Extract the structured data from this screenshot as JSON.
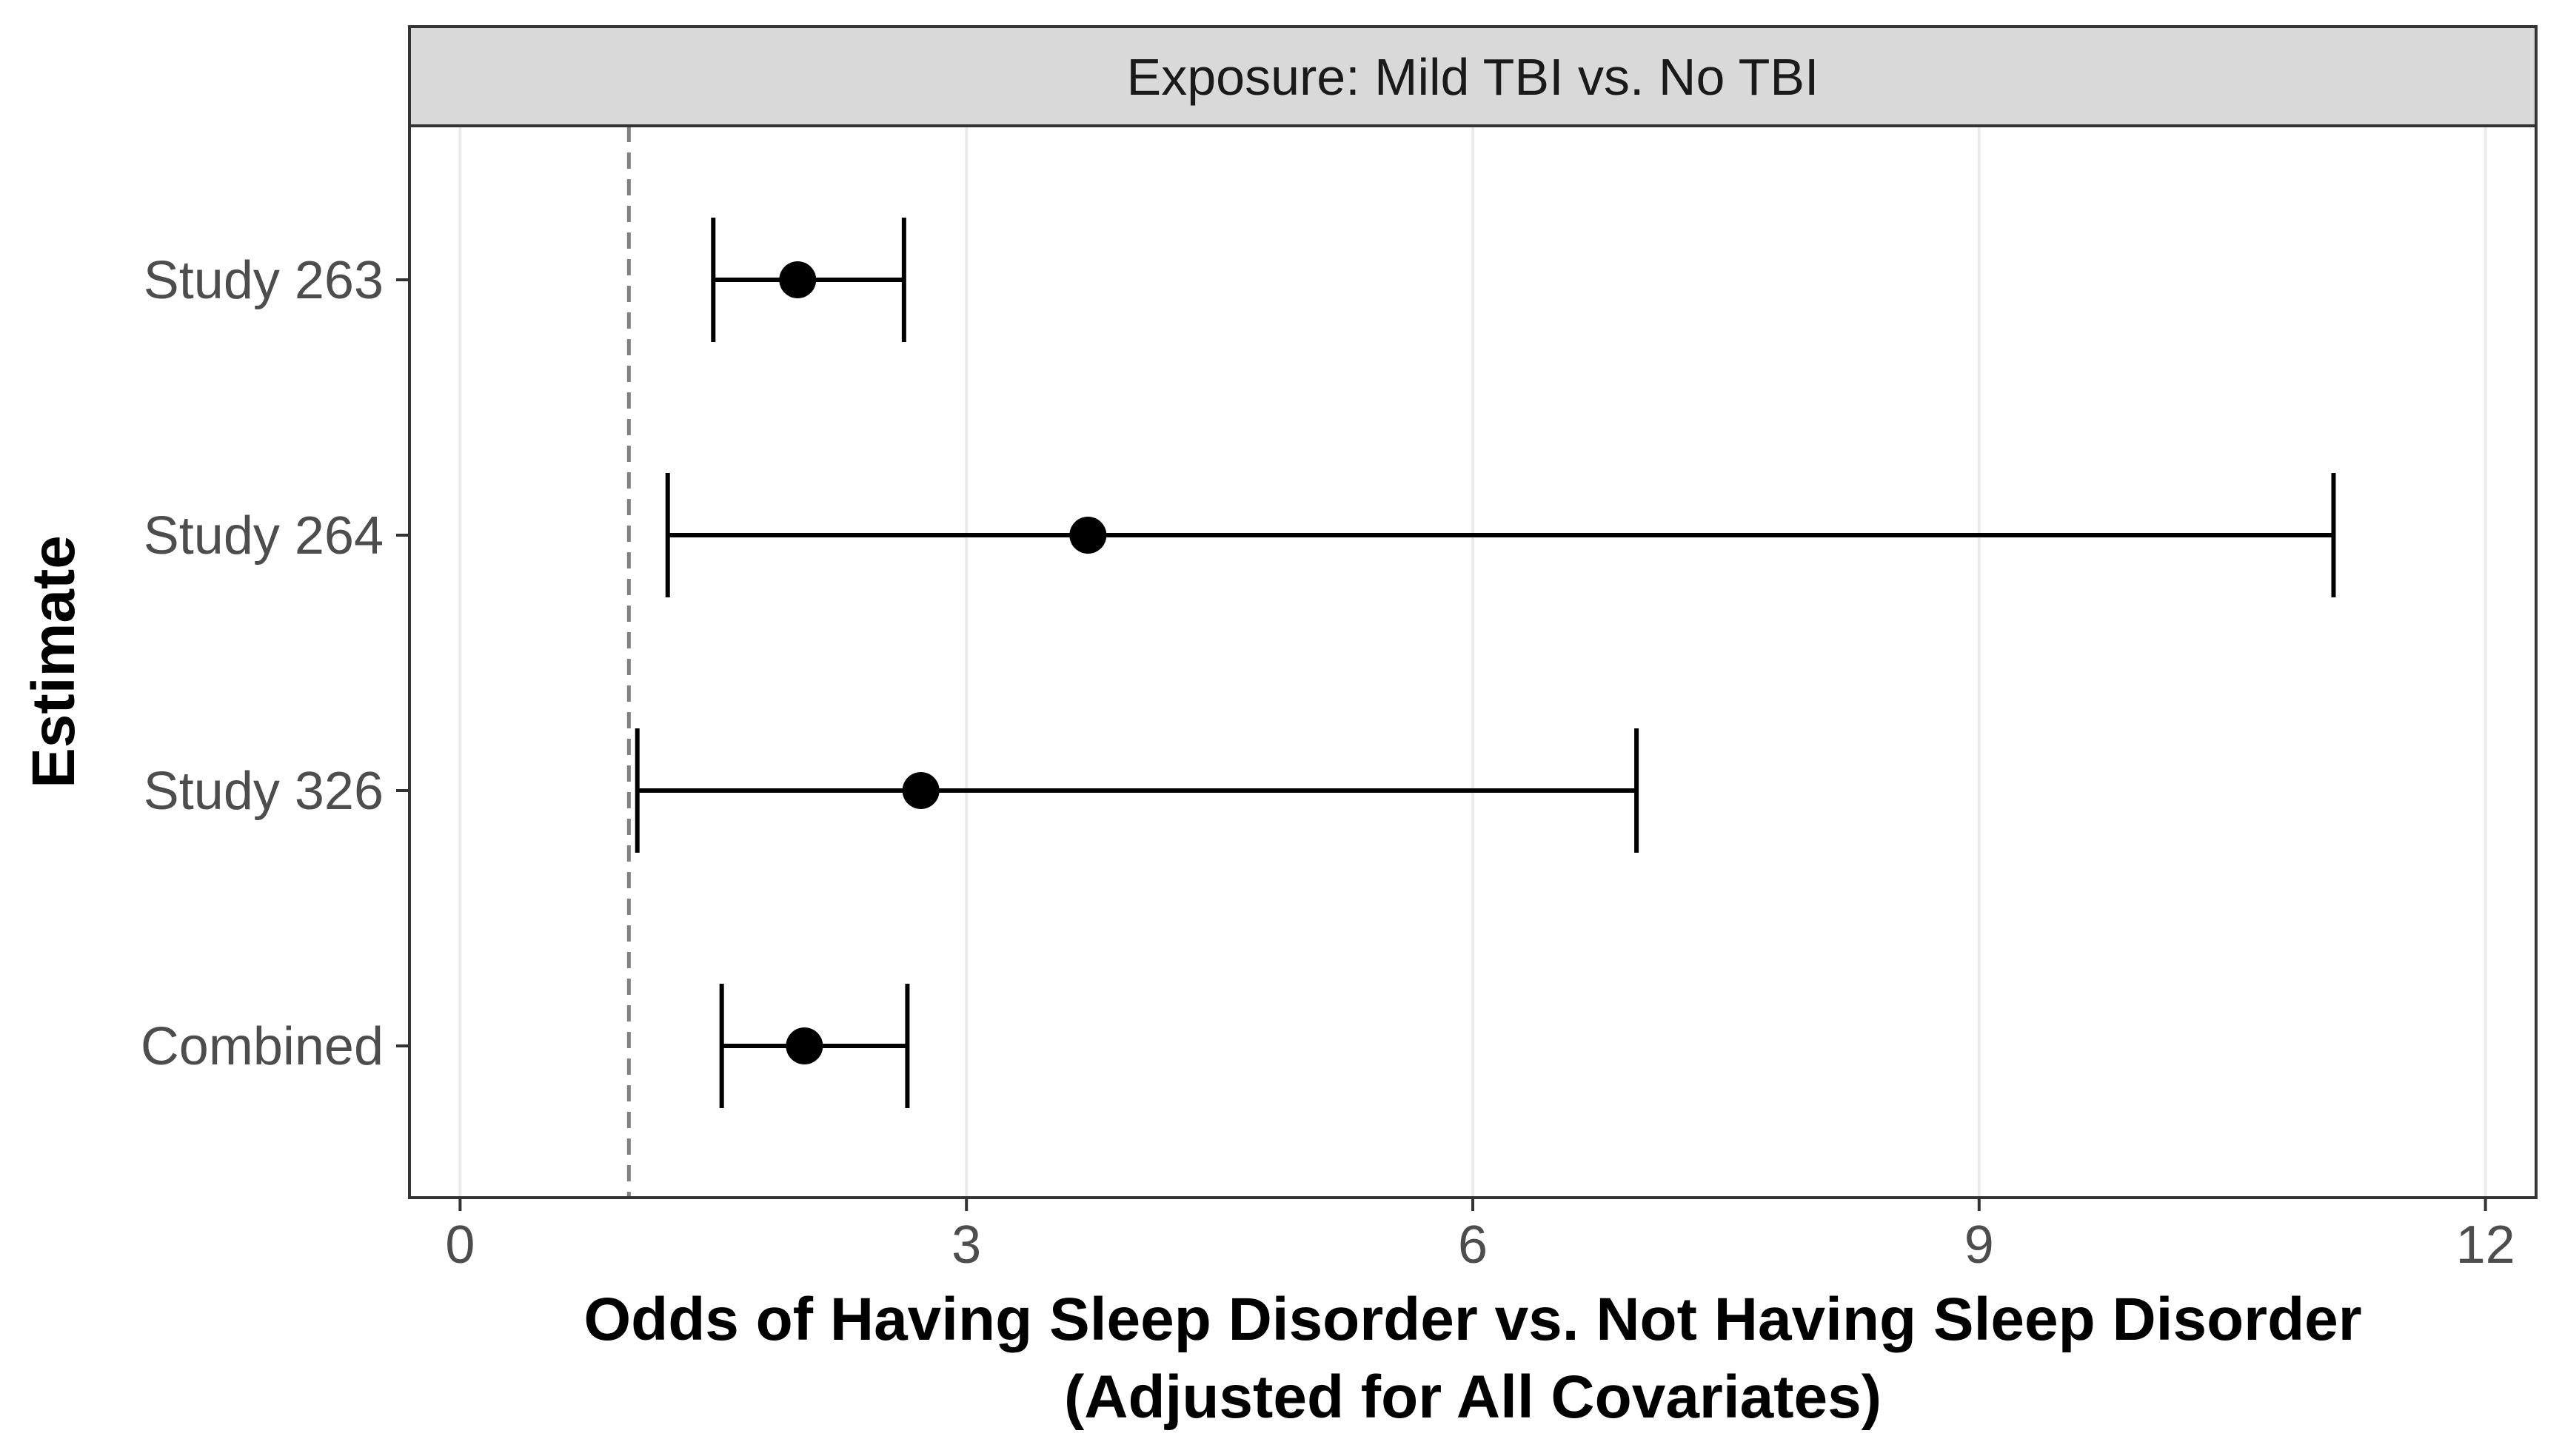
{
  "chart_data": {
    "type": "forest",
    "facet_label": "Exposure: Mild TBI vs. No TBI",
    "ylabel": "Estimate",
    "xlabel": [
      "Odds of Having Sleep Disorder vs. Not Having Sleep Disorder",
      "(Adjusted for All Covariates)"
    ],
    "xlim": [
      -0.3,
      12.3
    ],
    "x_ticks": [
      0,
      3,
      6,
      9,
      12
    ],
    "x_tick_labels": [
      "0",
      "3",
      "6",
      "9",
      "12"
    ],
    "reference_line": 1,
    "grid": true,
    "estimates": [
      {
        "label": "Study 263",
        "estimate": 2.0,
        "lower": 1.5,
        "upper": 2.63
      },
      {
        "label": "Study 264",
        "estimate": 3.72,
        "lower": 1.23,
        "upper": 11.1
      },
      {
        "label": "Study 326",
        "estimate": 2.73,
        "lower": 1.05,
        "upper": 6.97
      },
      {
        "label": "Combined",
        "estimate": 2.04,
        "lower": 1.55,
        "upper": 2.65
      }
    ],
    "colors": {
      "strip_fill": "#d9d9d9",
      "panel_border": "#333333",
      "grid": "#ebebeb",
      "reference": "#808080",
      "marker": "#000000"
    }
  }
}
